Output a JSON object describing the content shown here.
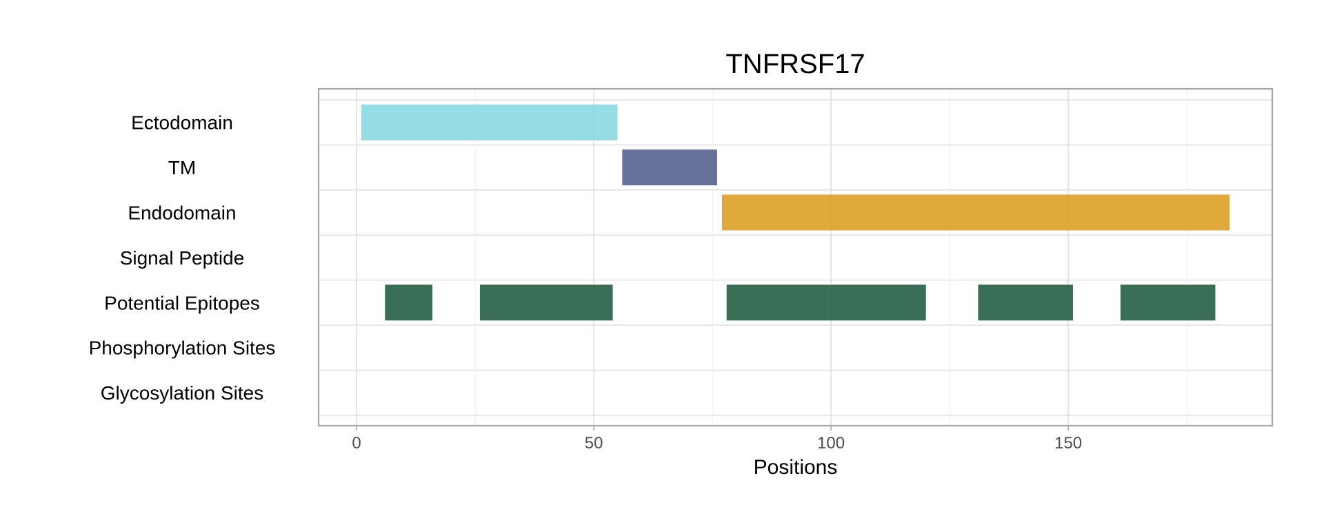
{
  "chart_data": {
    "type": "bar",
    "orientation": "horizontal-ranges",
    "title": "TNFRSF17",
    "xlabel": "Positions",
    "ylabel": "",
    "xlim": [
      -8,
      193
    ],
    "xticks": [
      0,
      50,
      100,
      150
    ],
    "grid": true,
    "legend": "none",
    "categories": [
      "Ectodomain",
      "TM",
      "Endodomain",
      "Signal Peptide",
      "Potential Epitopes",
      "Phosphorylation Sites",
      "Glycosylation Sites"
    ],
    "segments": [
      {
        "category": "Ectodomain",
        "start": 1,
        "end": 55,
        "color": "#8dd9e3"
      },
      {
        "category": "TM",
        "start": 56,
        "end": 76,
        "color": "#5b6590"
      },
      {
        "category": "Endodomain",
        "start": 77,
        "end": 184,
        "color": "#dca22a"
      },
      {
        "category": "Potential Epitopes",
        "start": 6,
        "end": 16,
        "color": "#2a6248"
      },
      {
        "category": "Potential Epitopes",
        "start": 26,
        "end": 54,
        "color": "#2a6248"
      },
      {
        "category": "Potential Epitopes",
        "start": 78,
        "end": 120,
        "color": "#2a6248"
      },
      {
        "category": "Potential Epitopes",
        "start": 131,
        "end": 151,
        "color": "#2a6248"
      },
      {
        "category": "Potential Epitopes",
        "start": 161,
        "end": 181,
        "color": "#2a6248"
      }
    ]
  }
}
